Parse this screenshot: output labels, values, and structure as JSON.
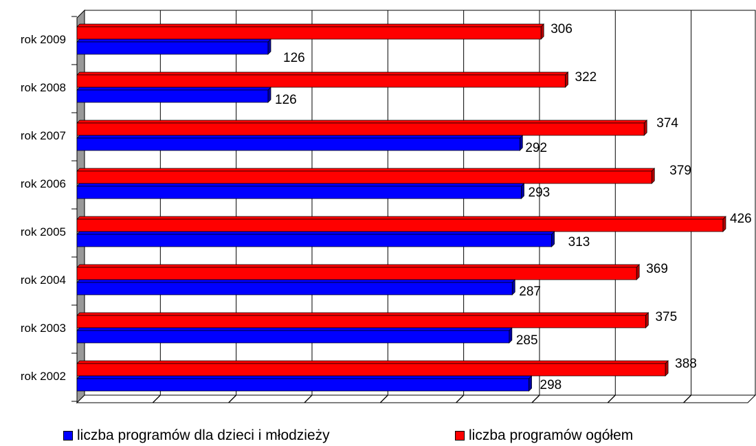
{
  "chart_data": {
    "type": "bar",
    "orientation": "horizontal",
    "categories": [
      "rok 2009",
      "rok 2008",
      "rok 2007",
      "rok 2006",
      "rok 2005",
      "rok 2004",
      "rok 2003",
      "rok 2002"
    ],
    "series": [
      {
        "name": "liczba programów ogółem",
        "color": "#ff0000",
        "values": [
          306,
          322,
          374,
          379,
          426,
          369,
          375,
          388
        ]
      },
      {
        "name": "liczba programów dla dzieci i młodzieży",
        "color": "#0000ff",
        "values": [
          126,
          126,
          292,
          293,
          313,
          287,
          285,
          298
        ]
      }
    ],
    "xlim": [
      0,
      450
    ],
    "grid": true,
    "legend_position": "bottom"
  },
  "legend": {
    "youth_label": "liczba programów dla dzieci i młodzieży",
    "youth_color": "#0000ff",
    "total_label": "liczba programów ogółem",
    "total_color": "#ff0000"
  }
}
